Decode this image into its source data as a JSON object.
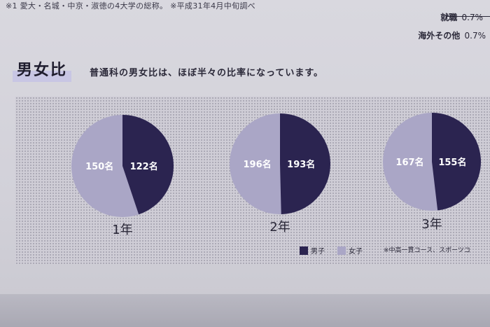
{
  "header": {
    "note": "※1 愛大・名城・中京・淑徳の4大学の総称。 ※平成31年4月中旬調べ",
    "stats": [
      {
        "label": "就職",
        "value": "0.7%"
      },
      {
        "label": "海外その他",
        "value": "0.7%"
      }
    ]
  },
  "section": {
    "title": "男女比",
    "subtitle": "普通科の男女比は、ほぼ半々の比率になっています。"
  },
  "legend": {
    "male": "男子",
    "female": "女子"
  },
  "footnote": "※中高一貫コース、スポーツコ",
  "colors": {
    "male": "#2b2450",
    "female": "#aaa6c6",
    "label": "#ffffff",
    "year": "#2a2838"
  },
  "chart_data": [
    {
      "type": "pie",
      "title": "1年",
      "categories": [
        "男子",
        "女子"
      ],
      "values": [
        122,
        150
      ],
      "labels": [
        "122名",
        "150名"
      ]
    },
    {
      "type": "pie",
      "title": "2年",
      "categories": [
        "男子",
        "女子"
      ],
      "values": [
        193,
        196
      ],
      "labels": [
        "193名",
        "196名"
      ]
    },
    {
      "type": "pie",
      "title": "3年",
      "categories": [
        "男子",
        "女子"
      ],
      "values": [
        155,
        167
      ],
      "labels": [
        "155名",
        "167名"
      ]
    }
  ]
}
